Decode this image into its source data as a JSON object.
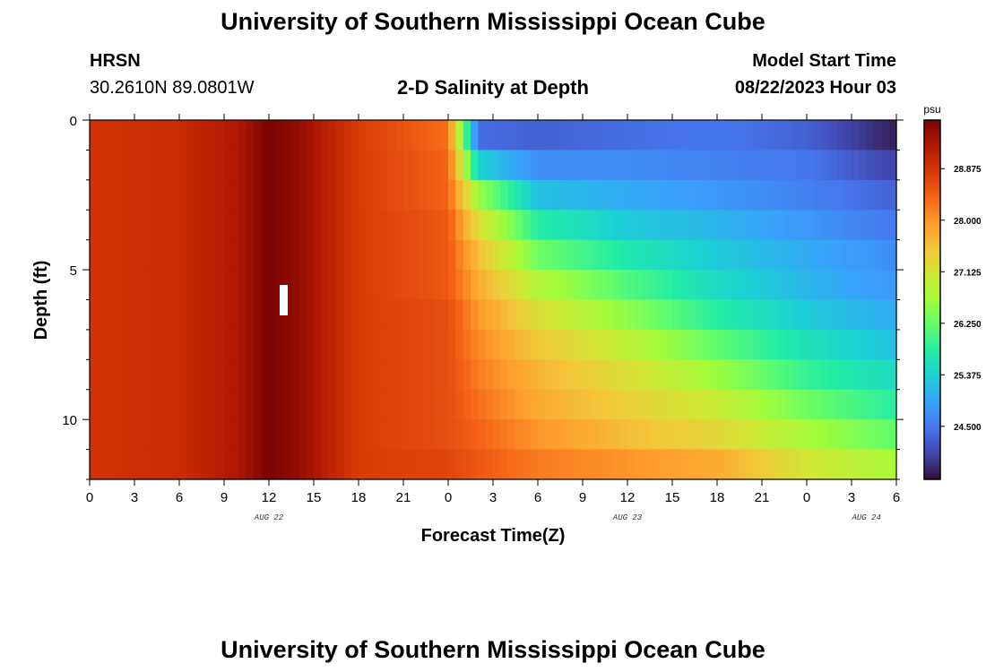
{
  "header": {
    "title": "University of Southern Mississippi Ocean Cube",
    "station_code": "HRSN",
    "station_coords": "30.2610N  89.0801W",
    "plot_title": "2-D Salinity at Depth",
    "model_start_label": "Model Start Time",
    "model_start_value": "08/22/2023 Hour 03"
  },
  "footer": {
    "title": "University of Southern Mississippi Ocean Cube"
  },
  "chart_data": {
    "type": "heatmap",
    "title": "2-D Salinity at Depth",
    "xlabel": "Forecast Time(Z)",
    "ylabel": "Depth (ft)",
    "x_tick_labels": [
      "0",
      "3",
      "6",
      "9",
      "12",
      "15",
      "18",
      "21",
      "0",
      "3",
      "6",
      "9",
      "12",
      "15",
      "18",
      "21",
      "0",
      "3",
      "6"
    ],
    "x_range_hours": [
      0,
      54
    ],
    "date_labels": [
      {
        "label": "AUG 22",
        "hour": 12
      },
      {
        "label": "AUG 23",
        "hour": 36
      },
      {
        "label": "AUG 24",
        "hour": 52
      }
    ],
    "y_tick_labels": [
      "0",
      "5",
      "10"
    ],
    "y_tick_values": [
      0,
      5,
      10
    ],
    "ylim": [
      0,
      12
    ],
    "y_inverted": true,
    "depth_layers": 12,
    "colorbar": {
      "unit": "psu",
      "min": 23.6,
      "max": 29.7,
      "ticks": [
        "28.875",
        "28.000",
        "27.125",
        "26.250",
        "25.375",
        "24.500"
      ],
      "tick_values": [
        28.875,
        28.0,
        27.125,
        26.25,
        25.375,
        24.5
      ],
      "colormap": [
        "#30123b",
        "#4145ab",
        "#4675ed",
        "#39a2fc",
        "#1bcfd4",
        "#24eca6",
        "#61fc6c",
        "#a4fc3b",
        "#d1e834",
        "#f3c63a",
        "#fe9b2d",
        "#f36315",
        "#d93806",
        "#b11901",
        "#7a0403"
      ]
    },
    "profile_hours": [
      0,
      6,
      10,
      12,
      14,
      18,
      24,
      26,
      30,
      36,
      42,
      48,
      54
    ],
    "profile_note_layers": "values listed from surface (0-1 ft) to bottom (11-12 ft)",
    "salinity_profiles": [
      [
        28.9,
        28.9,
        28.9,
        28.9,
        28.9,
        28.9,
        28.9,
        28.9,
        28.9,
        28.9,
        28.9,
        28.9
      ],
      [
        29.0,
        29.0,
        29.0,
        29.0,
        29.0,
        29.0,
        29.0,
        29.0,
        29.0,
        29.0,
        29.0,
        29.0
      ],
      [
        29.3,
        29.3,
        29.3,
        29.3,
        29.3,
        29.3,
        29.3,
        29.3,
        29.3,
        29.3,
        29.3,
        29.3
      ],
      [
        29.7,
        29.7,
        29.7,
        29.7,
        29.7,
        29.7,
        29.7,
        29.7,
        29.7,
        29.7,
        29.7,
        29.7
      ],
      [
        29.5,
        29.5,
        29.5,
        29.5,
        29.5,
        29.5,
        29.5,
        29.5,
        29.5,
        29.5,
        29.5,
        29.5
      ],
      [
        28.8,
        28.8,
        28.8,
        28.8,
        28.8,
        28.8,
        28.8,
        28.8,
        28.8,
        28.8,
        28.8,
        28.8
      ],
      [
        28.3,
        28.4,
        28.4,
        28.5,
        28.5,
        28.5,
        28.6,
        28.6,
        28.6,
        28.6,
        28.6,
        28.7
      ],
      [
        24.4,
        25.4,
        26.6,
        27.2,
        27.6,
        27.8,
        28.0,
        28.1,
        28.2,
        28.3,
        28.4,
        28.5
      ],
      [
        24.3,
        24.7,
        25.2,
        25.8,
        26.3,
        26.8,
        27.2,
        27.5,
        27.7,
        27.8,
        28.0,
        28.2
      ],
      [
        24.4,
        24.7,
        25.0,
        25.3,
        25.7,
        26.1,
        26.5,
        26.9,
        27.2,
        27.4,
        27.6,
        28.0
      ],
      [
        24.5,
        24.6,
        24.8,
        25.1,
        25.3,
        25.5,
        25.8,
        26.2,
        26.6,
        27.0,
        27.3,
        27.8
      ],
      [
        24.3,
        24.5,
        24.6,
        24.8,
        25.0,
        25.1,
        25.3,
        25.6,
        25.9,
        26.3,
        26.7,
        27.1
      ],
      [
        23.7,
        24.0,
        24.3,
        24.5,
        24.7,
        24.8,
        25.0,
        25.2,
        25.5,
        25.8,
        26.2,
        26.7
      ]
    ]
  }
}
